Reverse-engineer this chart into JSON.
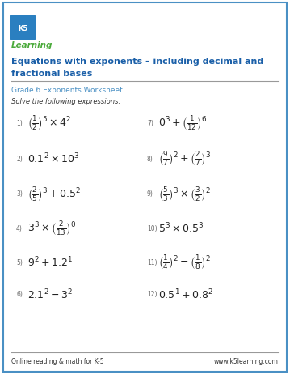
{
  "title_line1": "Equations with exponents – including decimal and",
  "title_line2": "fractional bases",
  "subtitle": "Grade 6 Exponents Worksheet",
  "instruction": "Solve the following expressions.",
  "bg_color": "#ffffff",
  "border_color": "#4a90c4",
  "title_color": "#1a5fa8",
  "subtitle_color": "#4a90c4",
  "text_color": "#333333",
  "footer_left": "Online reading & math for K-5",
  "footer_right": "www.k5learning.com",
  "left_nums": [
    "1)",
    "2)",
    "3)",
    "4)",
    "5)",
    "6)"
  ],
  "right_nums": [
    "7)",
    "8)",
    "9)",
    "10)",
    "11)",
    "12)"
  ],
  "logo_blue": "#2a7fc0",
  "logo_green": "#4aaa3a"
}
